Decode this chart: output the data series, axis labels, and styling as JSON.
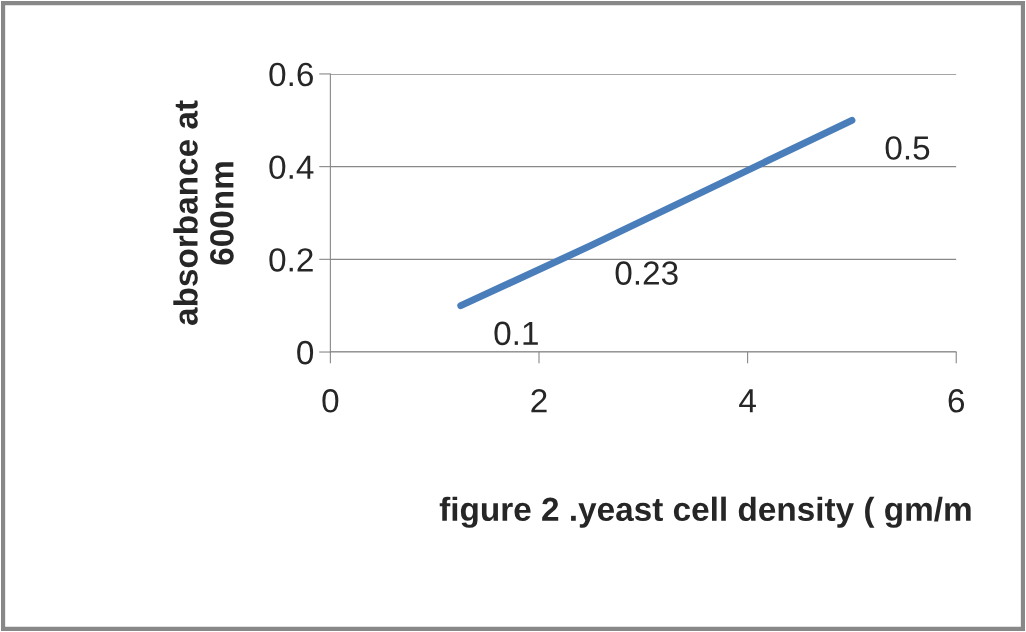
{
  "chart_data": {
    "type": "line",
    "xlabel": "figure 2 .yeast cell density ( gm/m",
    "ylabel": "absorbance at\n600nm",
    "x": [
      1.25,
      2.5,
      5
    ],
    "series": [
      {
        "color": "#4a7ebb",
        "values": [
          0.1,
          0.23,
          0.5
        ]
      }
    ],
    "xlim": [
      0,
      6
    ],
    "xticks": [
      0,
      2,
      4,
      6
    ],
    "ylim": [
      0,
      0.6
    ],
    "yticks": [
      0,
      0.2,
      0.4,
      0.6
    ],
    "grid": "y",
    "data_labels": true,
    "marker": "none",
    "line_style": "solid",
    "legend": false
  }
}
